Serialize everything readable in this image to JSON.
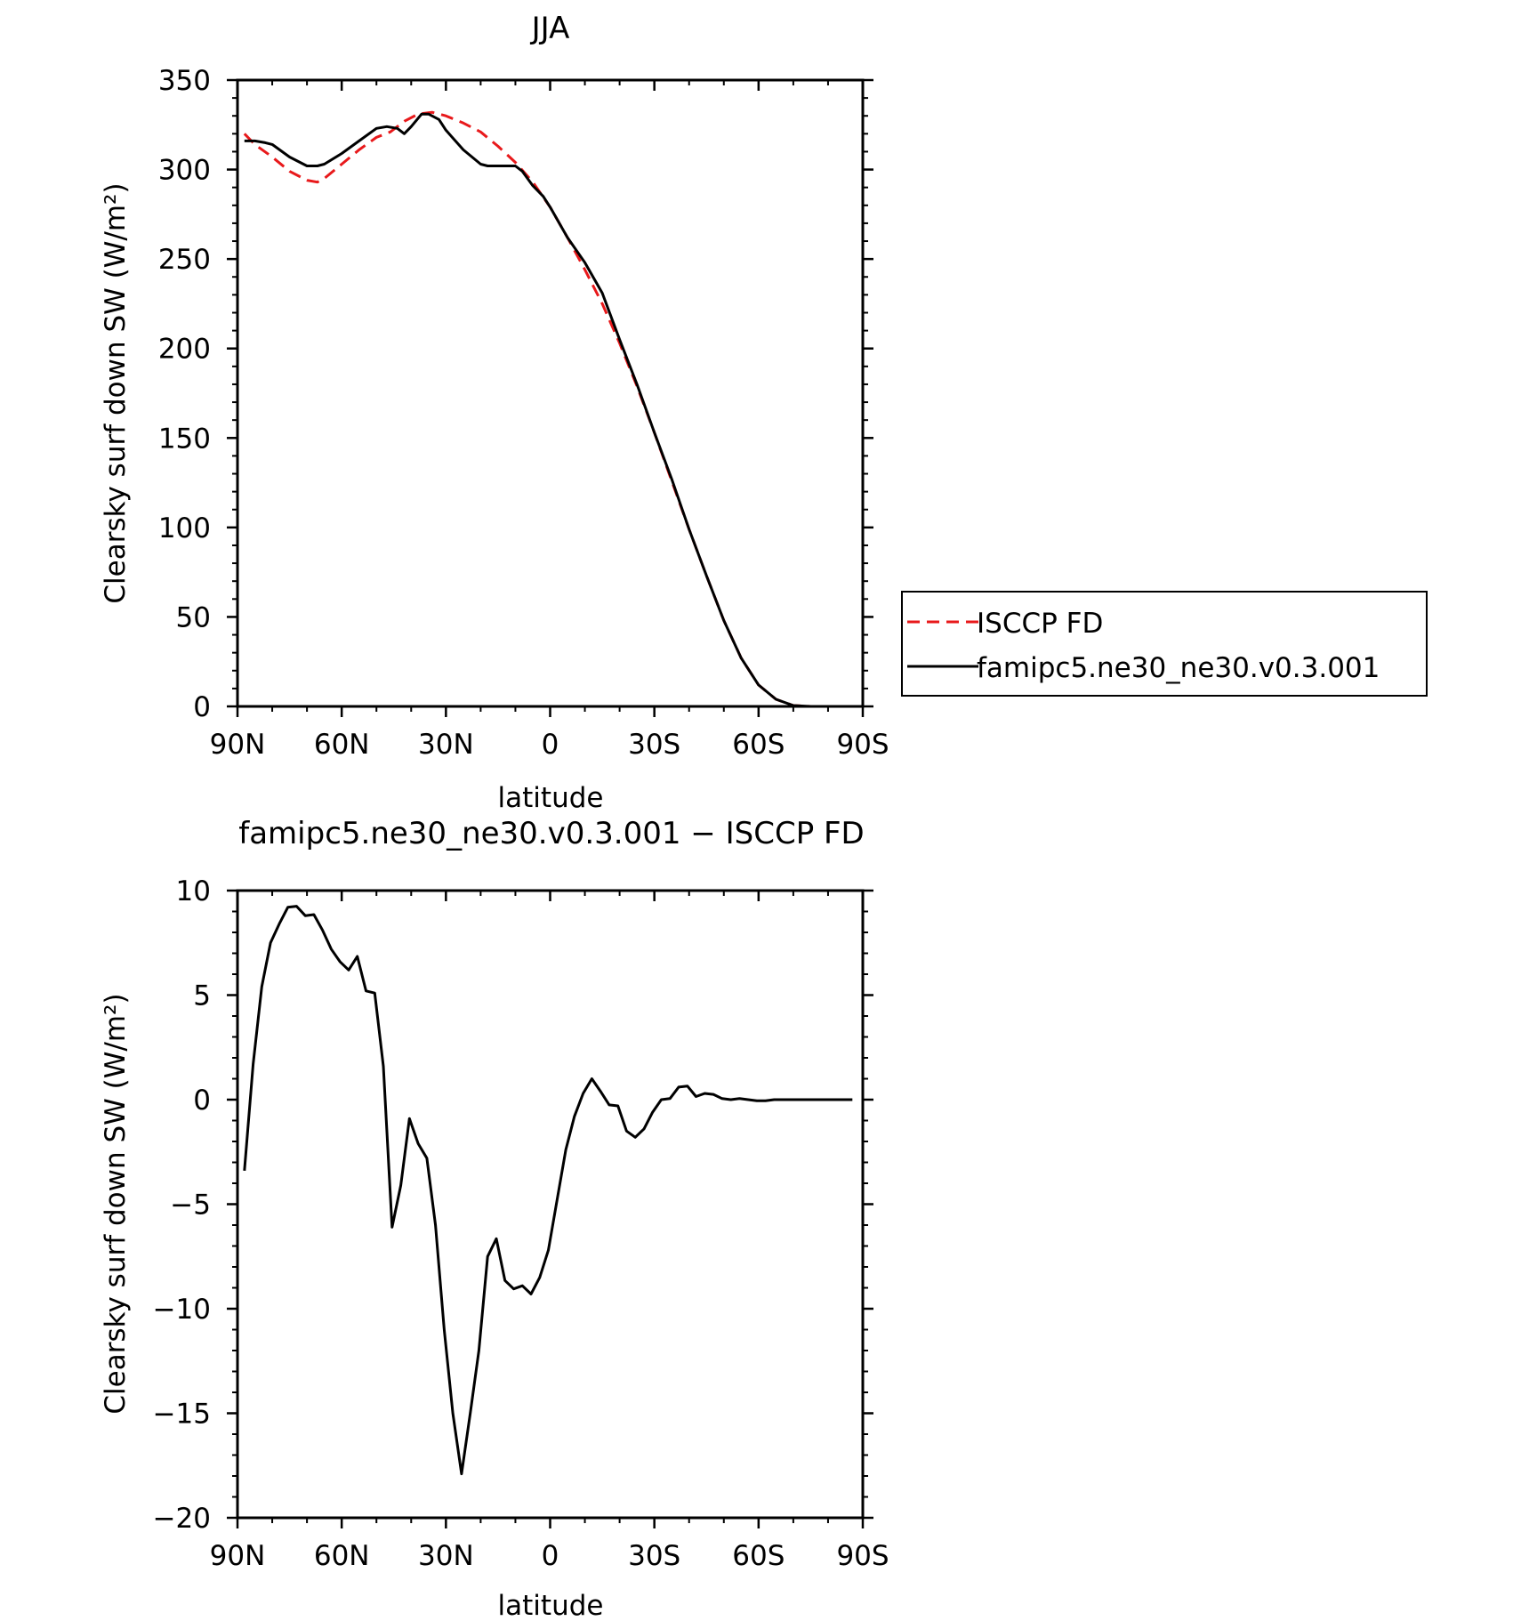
{
  "chart_data": [
    {
      "type": "line",
      "title": "JJA",
      "xlabel": "latitude",
      "ylabel": "Clearsky surf down SW (W/m²)",
      "xlim": [
        90,
        -90
      ],
      "ylim": [
        0,
        350
      ],
      "x_tick_values": [
        90,
        60,
        30,
        0,
        -30,
        -60,
        -90
      ],
      "x_tick_labels": [
        "90N",
        "60N",
        "30N",
        "0",
        "30S",
        "60S",
        "90S"
      ],
      "y_tick_values": [
        0,
        50,
        100,
        150,
        200,
        250,
        300,
        350
      ],
      "y_tick_labels": [
        "0",
        "50",
        "100",
        "150",
        "200",
        "250",
        "300",
        "350"
      ],
      "legend_placement": "outside-right",
      "series": [
        {
          "name": "ISCCP FD",
          "color": "#e8191b",
          "dash": "dashed",
          "x": [
            88,
            85,
            80,
            75,
            70,
            67,
            65,
            60,
            55,
            50,
            46,
            42,
            38,
            34,
            30,
            25,
            20,
            15,
            10,
            5,
            0,
            -5,
            -10,
            -15,
            -20,
            -25,
            -30,
            -35,
            -40,
            -45,
            -50,
            -55,
            -60,
            -65,
            -70,
            -75,
            -80,
            -85,
            -88
          ],
          "y": [
            320,
            314,
            307,
            299,
            294,
            293,
            295,
            303,
            311,
            318,
            321,
            327,
            331,
            332,
            330,
            326,
            321,
            313,
            304,
            293,
            279,
            262,
            244,
            225,
            203,
            179,
            153,
            126,
            99,
            73,
            48,
            27,
            12,
            4,
            0.5,
            0,
            0,
            0,
            0
          ]
        },
        {
          "name": "famipc5.ne30_ne30.v0.3.001",
          "color": "#000000",
          "dash": "solid",
          "x": [
            88,
            85,
            82,
            80,
            75,
            70,
            67,
            65,
            60,
            55,
            50,
            47,
            44,
            42,
            40,
            37,
            35,
            32,
            30,
            25,
            20,
            18,
            15,
            10,
            8,
            5,
            2,
            0,
            -5,
            -10,
            -15,
            -20,
            -25,
            -30,
            -35,
            -40,
            -45,
            -50,
            -55,
            -60,
            -65,
            -70,
            -75,
            -80,
            -85,
            -88
          ],
          "y": [
            316,
            316,
            315,
            314,
            307,
            302,
            302,
            303,
            309,
            316,
            323,
            324,
            323,
            320,
            324,
            331,
            331,
            328,
            322,
            311,
            303,
            302,
            302,
            302,
            299,
            291,
            285,
            279,
            262,
            248,
            231,
            205,
            180,
            153,
            127,
            99,
            73,
            48,
            27,
            12,
            4,
            0.5,
            0,
            0,
            0,
            0
          ]
        }
      ]
    },
    {
      "type": "line",
      "title": "famipc5.ne30_ne30.v0.3.001 − ISCCP FD",
      "xlabel": "latitude",
      "ylabel": "Clearsky surf down SW (W/m²)",
      "xlim": [
        90,
        -90
      ],
      "ylim": [
        -20,
        10
      ],
      "x_tick_values": [
        90,
        60,
        30,
        0,
        -30,
        -60,
        -90
      ],
      "x_tick_labels": [
        "90N",
        "60N",
        "30N",
        "0",
        "30S",
        "60S",
        "90S"
      ],
      "y_tick_values": [
        -20,
        -15,
        -10,
        -5,
        0,
        5,
        10
      ],
      "y_tick_labels": [
        "−20",
        "−15",
        "−10",
        "−5",
        "0",
        "5",
        "10"
      ],
      "series": [
        {
          "color": "#000000",
          "dash": "solid",
          "x": [
            88,
            85.5,
            83,
            80.5,
            78,
            75.5,
            73,
            70.5,
            68,
            65.5,
            63,
            60.5,
            58,
            55.5,
            53,
            50.5,
            48,
            45.5,
            43,
            40.5,
            38,
            35.5,
            33,
            30.5,
            28,
            25.5,
            23,
            20.5,
            18,
            15.5,
            13,
            10.5,
            8,
            5.5,
            3,
            0.5,
            -2,
            -4.5,
            -7,
            -9.5,
            -12,
            -14.5,
            -17,
            -19.5,
            -22,
            -24.5,
            -27,
            -29.5,
            -32,
            -34.5,
            -37,
            -39.5,
            -42,
            -44.5,
            -47,
            -49.5,
            -52,
            -54.5,
            -57,
            -59.5,
            -62,
            -64.5,
            -67,
            -69.5,
            -72,
            -74.5,
            -77,
            -79.5,
            -82,
            -84.5,
            -87
          ],
          "y": [
            -3.4,
            1.7,
            5.4,
            7.5,
            8.4,
            9.2,
            9.25,
            8.8,
            8.85,
            8.1,
            7.2,
            6.6,
            6.2,
            6.85,
            5.2,
            5.1,
            1.6,
            -6.1,
            -4.1,
            -0.9,
            -2.1,
            -2.8,
            -6,
            -11,
            -15,
            -17.9,
            -15,
            -12,
            -7.5,
            -6.65,
            -8.65,
            -9.05,
            -8.9,
            -9.3,
            -8.5,
            -7.2,
            -4.8,
            -2.4,
            -0.8,
            0.3,
            1.0,
            0.4,
            -0.25,
            -0.3,
            -1.5,
            -1.8,
            -1.4,
            -0.6,
            0.0,
            0.05,
            0.6,
            0.65,
            0.15,
            0.3,
            0.25,
            0.05,
            0.0,
            0.05,
            0.0,
            -0.05,
            -0.05,
            0.0,
            0.0,
            0.0,
            0.0,
            0.0,
            0.0,
            0.0,
            0.0,
            0.0,
            0.0
          ]
        }
      ]
    }
  ]
}
